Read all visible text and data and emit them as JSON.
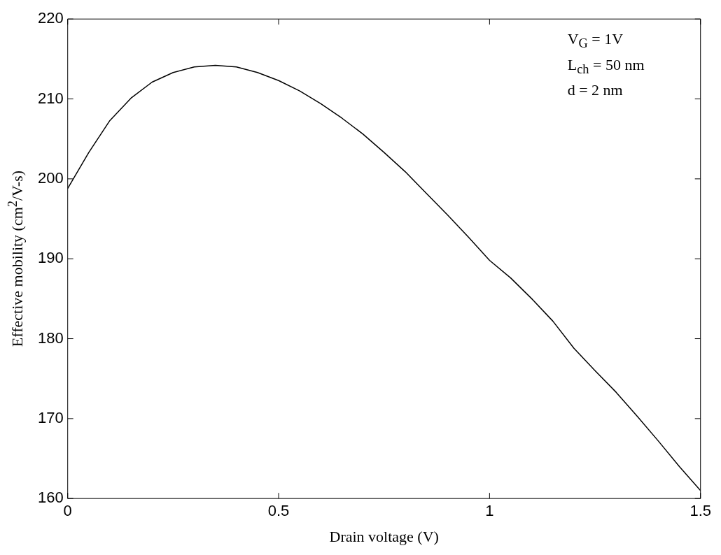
{
  "chart_data": {
    "type": "line",
    "xlabel": "Drain voltage (V)",
    "ylabel": "Effective mobility (cm$^{2}$/V-s)",
    "annotations": [
      "V$_{G}$ = 1V",
      "L$_{ch}$ = 50 nm",
      "d = 2 nm"
    ],
    "xlim": [
      0,
      1.5
    ],
    "xticks": [
      0,
      0.5,
      1,
      1.5
    ],
    "ylim": [
      160,
      220
    ],
    "yticks": [
      160,
      170,
      180,
      190,
      200,
      210,
      220
    ],
    "x": [
      0,
      0.05,
      0.1,
      0.15,
      0.2,
      0.25,
      0.3,
      0.35,
      0.4,
      0.45,
      0.5,
      0.55,
      0.6,
      0.65,
      0.7,
      0.75,
      0.8,
      0.85,
      0.9,
      0.95,
      1,
      1.05,
      1.1,
      1.15,
      1.2,
      1.25,
      1.3,
      1.35,
      1.4,
      1.45,
      1.5
    ],
    "series": [
      {
        "color": "#000000",
        "values": [
          198.8,
          203.3,
          207.3,
          210.1,
          212.1,
          213.3,
          214,
          214.2,
          214,
          213.3,
          212.3,
          211,
          209.4,
          207.6,
          205.6,
          203.3,
          200.9,
          198.2,
          195.5,
          192.7,
          189.8,
          187.6,
          185,
          182.2,
          178.8,
          176,
          173.3,
          170.3,
          167.2,
          164,
          161
        ]
      }
    ],
    "marker": "none",
    "line_style": "solid",
    "legend": false,
    "grid": false
  }
}
